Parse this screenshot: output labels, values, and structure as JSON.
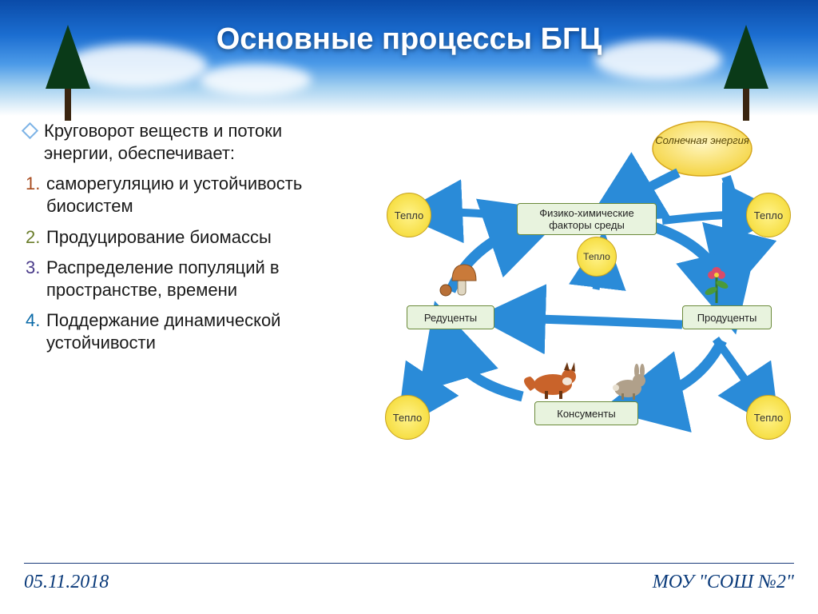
{
  "title": "Основные процессы БГЦ",
  "lead": "Круговорот веществ и потоки энергии, обеспечивает:",
  "items": [
    {
      "num": "1.",
      "cls": "n1",
      "text": "саморегуляцию и устойчивость биосистем"
    },
    {
      "num": "2.",
      "cls": "n2",
      "text": "Продуцирование биомассы"
    },
    {
      "num": "3.",
      "cls": "n3",
      "text": "Распределение популяций в пространстве, времени"
    },
    {
      "num": "4.",
      "cls": "n4",
      "text": "Поддержание динамической устойчивости"
    }
  ],
  "footer": {
    "date": "05.11.2018",
    "org": "МОУ \"СОШ №2\""
  },
  "diagram": {
    "sun_label": "Солнечная энергия",
    "heat_label": "Тепло",
    "nodes": {
      "factors": "Физико-химические факторы среды",
      "reducers": "Редуценты",
      "producers": "Продуценты",
      "consumers": "Консументы"
    },
    "arrow_color": "#2a8bd8",
    "sun_fill_inner": "#fff6c0",
    "sun_fill_outer": "#f4d23a",
    "sun_stroke": "#d6a71e",
    "mushroom_cap": "#c97a3a",
    "mushroom_stem": "#e0d7c2",
    "flower_stem": "#357a2e",
    "flower_petal": "#d94b6a",
    "fox_color": "#c9632a",
    "rabbit_color": "#b0a08a"
  },
  "colors": {
    "title_color": "#ffffff",
    "footer_color": "#0a3a7a"
  }
}
